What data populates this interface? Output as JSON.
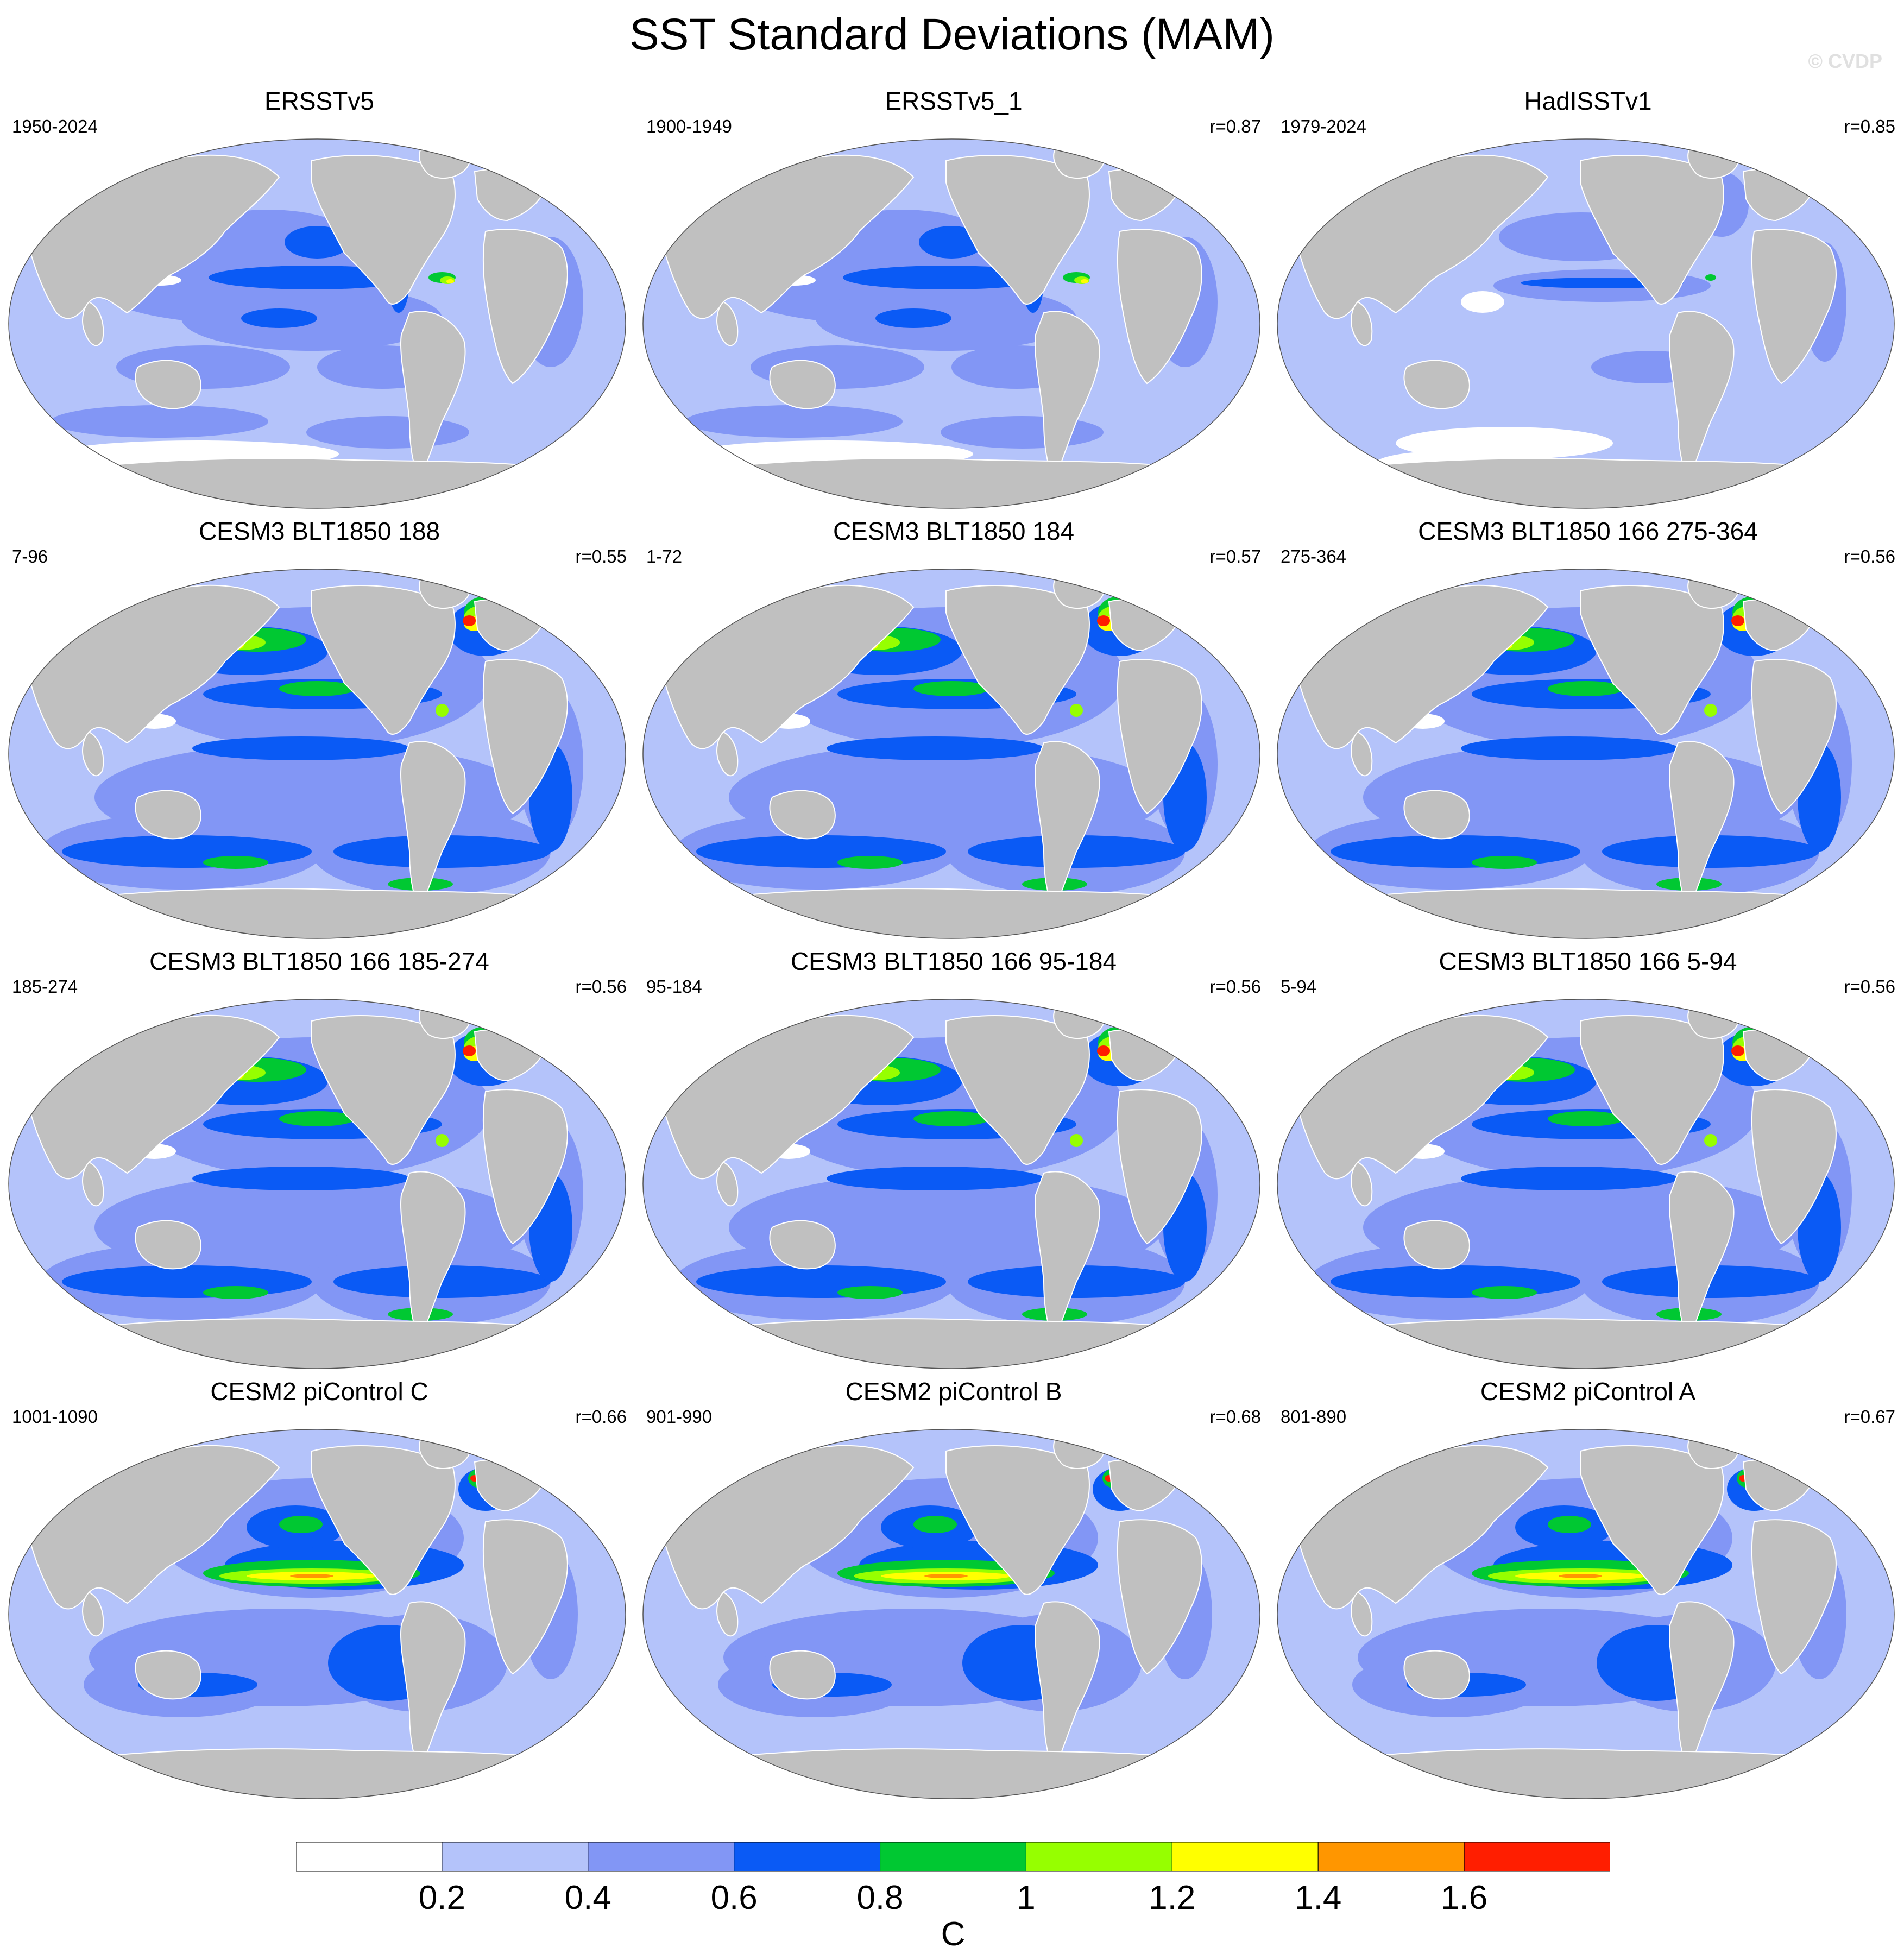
{
  "title": "SST Standard Deviations (MAM)",
  "watermark": "© CVDP",
  "panels": [
    {
      "title": "ERSSTv5",
      "left": "1950-2024",
      "right": "",
      "style": "obs"
    },
    {
      "title": "ERSSTv5_1",
      "left": "1900-1949",
      "right": "r=0.87",
      "style": "obs"
    },
    {
      "title": "HadISSTv1",
      "left": "1979-2024",
      "right": "r=0.85",
      "style": "obs-low"
    },
    {
      "title": "CESM3 BLT1850 188",
      "left": "7-96",
      "right": "r=0.55",
      "style": "cesm3"
    },
    {
      "title": "CESM3 BLT1850 184",
      "left": "1-72",
      "right": "r=0.57",
      "style": "cesm3"
    },
    {
      "title": "CESM3 BLT1850 166 275-364",
      "left": "275-364",
      "right": "r=0.56",
      "style": "cesm3"
    },
    {
      "title": "CESM3 BLT1850 166 185-274",
      "left": "185-274",
      "right": "r=0.56",
      "style": "cesm3"
    },
    {
      "title": "CESM3 BLT1850 166 95-184",
      "left": "95-184",
      "right": "r=0.56",
      "style": "cesm3"
    },
    {
      "title": "CESM3 BLT1850 166 5-94",
      "left": "5-94",
      "right": "r=0.56",
      "style": "cesm3"
    },
    {
      "title": "CESM2 piControl C",
      "left": "1001-1090",
      "right": "r=0.66",
      "style": "cesm2"
    },
    {
      "title": "CESM2 piControl B",
      "left": "901-990",
      "right": "r=0.68",
      "style": "cesm2"
    },
    {
      "title": "CESM2 piControl A",
      "left": "801-890",
      "right": "r=0.67",
      "style": "cesm2"
    }
  ],
  "colorbar": {
    "unit": "C",
    "tick_labels": [
      "0.2",
      "0.4",
      "0.6",
      "0.8",
      "1",
      "1.2",
      "1.4",
      "1.6"
    ],
    "colors": [
      "#ffffff",
      "#b4c3fa",
      "#8296f5",
      "#0a5af5",
      "#00c832",
      "#96ff00",
      "#ffff00",
      "#ff9600",
      "#ff1e00"
    ]
  },
  "palette": {
    "land": "#c0c0c0",
    "ocean_base": "#b4c3fa"
  }
}
